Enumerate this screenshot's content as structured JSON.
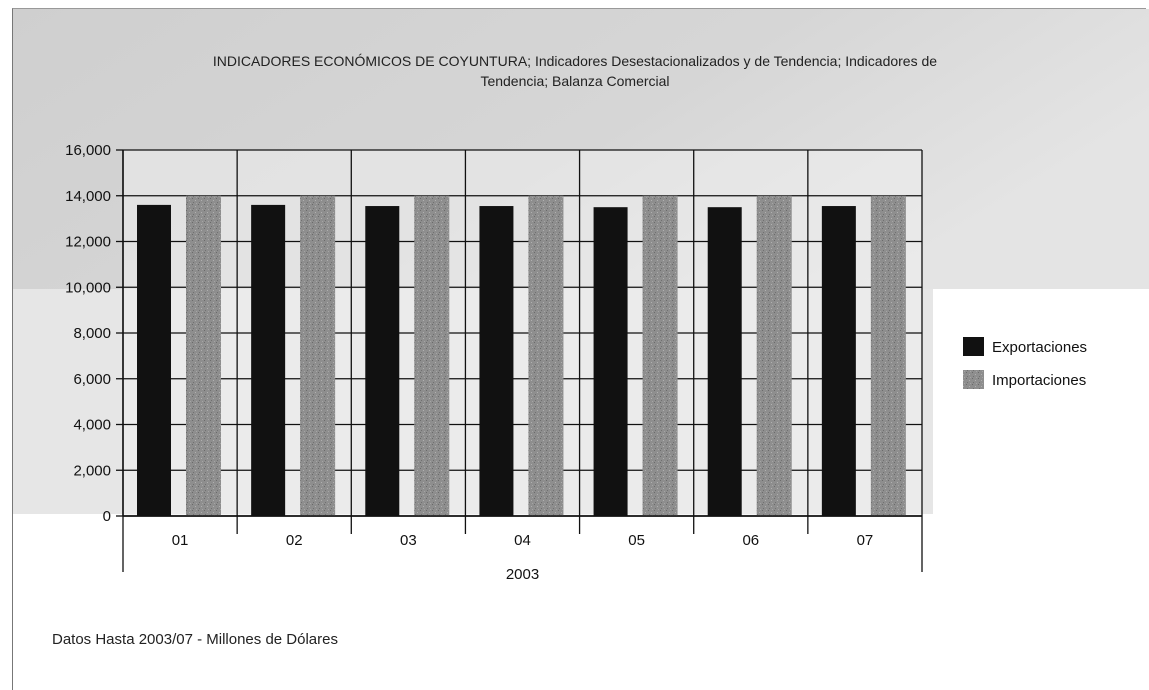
{
  "title_line1": "INDICADORES ECONÓMICOS DE COYUNTURA; Indicadores Desestacionalizados y de Tendencia; Indicadores de",
  "title_line2": "Tendencia; Balanza Comercial",
  "footer": "Datos Hasta 2003/07 - Millones de Dólares",
  "colors": {
    "exportaciones": "#111111",
    "importaciones": "#8e8e8e",
    "background": "#d8d8d8"
  },
  "chart_data": {
    "type": "bar",
    "title": "INDICADORES ECONÓMICOS DE COYUNTURA; Indicadores Desestacionalizados y de Tendencia; Indicadores de Tendencia; Balanza Comercial",
    "categories": [
      "01",
      "02",
      "03",
      "04",
      "05",
      "06",
      "07"
    ],
    "x_group_label": "2003",
    "yticks": [
      "0",
      "2,000",
      "4,000",
      "6,000",
      "8,000",
      "10,000",
      "12,000",
      "14,000",
      "16,000"
    ],
    "ylim": [
      0,
      16000
    ],
    "grid": true,
    "legend_position": "right",
    "series": [
      {
        "name": "Exportaciones",
        "values": [
          13600,
          13600,
          13550,
          13550,
          13500,
          13500,
          13550
        ]
      },
      {
        "name": "Importaciones",
        "values": [
          14000,
          14000,
          14000,
          14000,
          14000,
          14000,
          14000
        ]
      }
    ]
  }
}
